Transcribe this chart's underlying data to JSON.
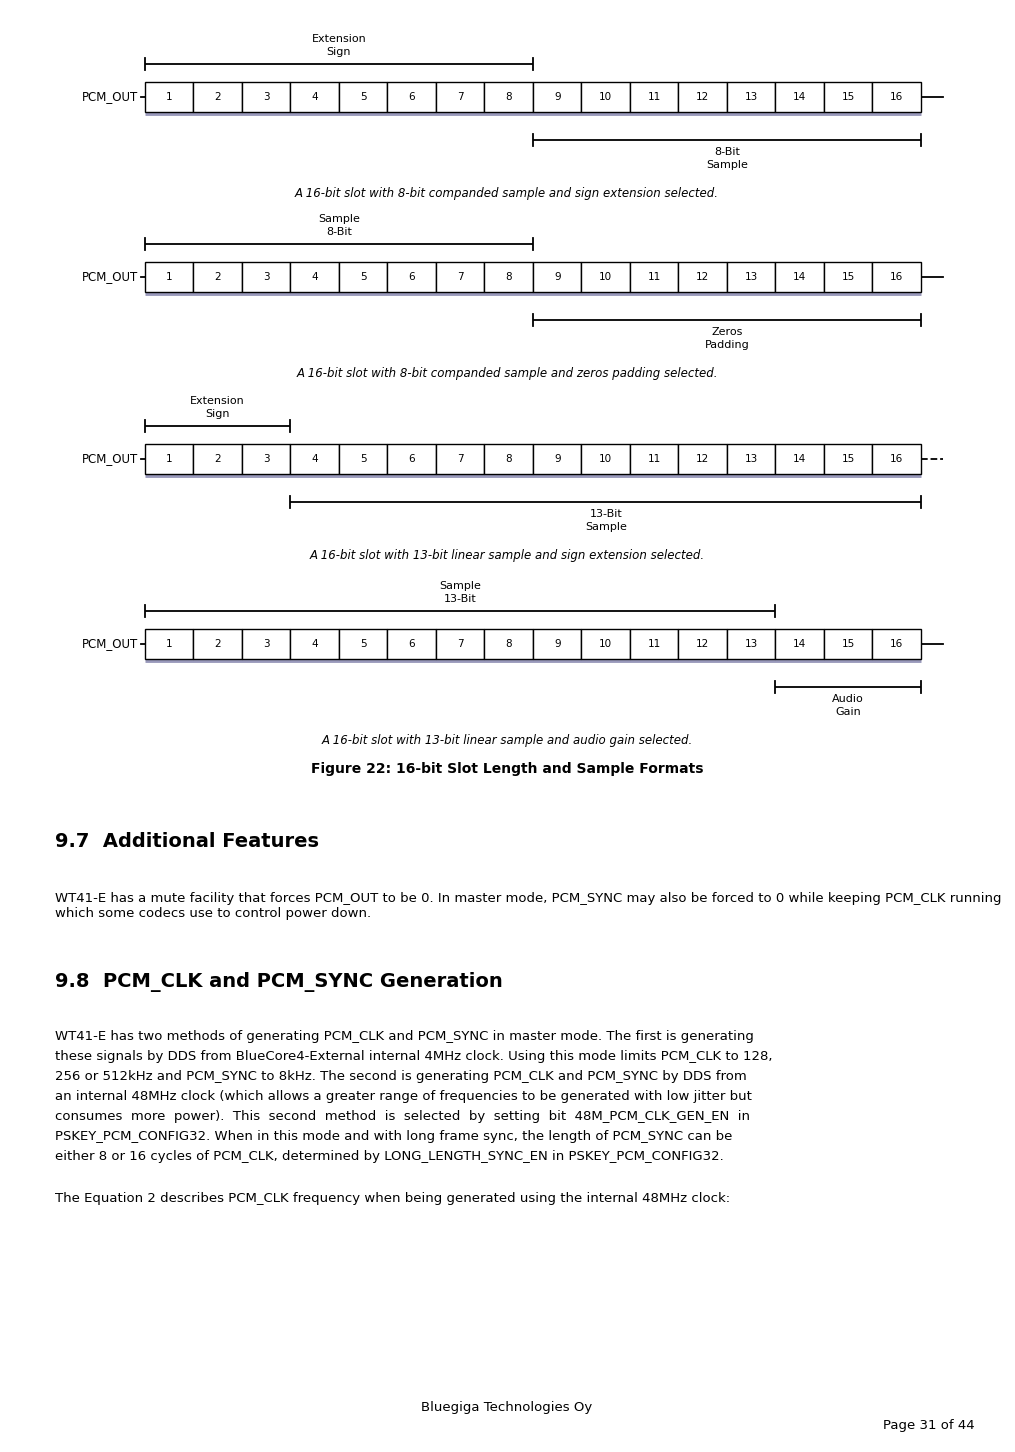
{
  "bg_color": "#ffffff",
  "diagrams": [
    {
      "label": "PCM_OUT",
      "cells": [
        "1",
        "2",
        "3",
        "4",
        "5",
        "6",
        "7",
        "8",
        "9",
        "10",
        "11",
        "12",
        "13",
        "14",
        "15",
        "16"
      ],
      "top_arrow": {
        "start": 1,
        "end": 8,
        "label_line1": "Sign",
        "label_line2": "Extension"
      },
      "bottom_arrow": {
        "start": 9,
        "end": 16,
        "label_line1": "8-Bit",
        "label_line2": "Sample"
      },
      "caption": "A 16-bit slot with 8-bit companded sample and sign extension selected.",
      "right_dashed": false
    },
    {
      "label": "PCM_OUT",
      "cells": [
        "1",
        "2",
        "3",
        "4",
        "5",
        "6",
        "7",
        "8",
        "9",
        "10",
        "11",
        "12",
        "13",
        "14",
        "15",
        "16"
      ],
      "top_arrow": {
        "start": 1,
        "end": 8,
        "label_line1": "8-Bit",
        "label_line2": "Sample"
      },
      "bottom_arrow": {
        "start": 9,
        "end": 16,
        "label_line1": "Zeros",
        "label_line2": "Padding"
      },
      "caption": "A 16-bit slot with 8-bit companded sample and zeros padding selected.",
      "right_dashed": false
    },
    {
      "label": "PCM_OUT",
      "cells": [
        "1",
        "2",
        "3",
        "4",
        "5",
        "6",
        "7",
        "8",
        "9",
        "10",
        "11",
        "12",
        "13",
        "14",
        "15",
        "16"
      ],
      "top_arrow": {
        "start": 1,
        "end": 3,
        "label_line1": "Sign",
        "label_line2": "Extension"
      },
      "bottom_arrow": {
        "start": 4,
        "end": 16,
        "label_line1": "13-Bit",
        "label_line2": "Sample"
      },
      "caption": "A 16-bit slot with 13-bit linear sample and sign extension selected.",
      "right_dashed": true
    },
    {
      "label": "PCM_OUT",
      "cells": [
        "1",
        "2",
        "3",
        "4",
        "5",
        "6",
        "7",
        "8",
        "9",
        "10",
        "11",
        "12",
        "13",
        "14",
        "15",
        "16"
      ],
      "top_arrow": {
        "start": 1,
        "end": 13,
        "label_line1": "13-Bit",
        "label_line2": "Sample"
      },
      "bottom_arrow": {
        "start": 14,
        "end": 16,
        "label_line1": "Audio",
        "label_line2": "Gain"
      },
      "caption": "A 16-bit slot with 13-bit linear sample and audio gain selected.",
      "right_dashed": false
    }
  ],
  "figure_caption": "Figure 22: 16-bit Slot Length and Sample Formats",
  "section_97_title": "9.7  Additional Features",
  "section_97_text": "WT41-E has a mute facility that forces PCM_OUT to be 0. In master mode, PCM_SYNC may also be forced to 0 while keeping PCM_CLK running which some codecs use to control power down.",
  "section_98_title": "9.8  PCM_CLK and PCM_SYNC Generation",
  "section_98_text_lines": [
    "WT41-E has two methods of generating PCM_CLK and PCM_SYNC in master mode. The first is generating",
    "these signals by DDS from BlueCore4-External internal 4MHz clock. Using this mode limits PCM_CLK to 128,",
    "256 or 512kHz and PCM_SYNC to 8kHz. The second is generating PCM_CLK and PCM_SYNC by DDS from",
    "an internal 48MHz clock (which allows a greater range of frequencies to be generated with low jitter but",
    "consumes  more  power).  This  second  method  is  selected  by  setting  bit  48M_PCM_CLK_GEN_EN  in",
    "PSKEY_PCM_CONFIG32. When in this mode and with long frame sync, the length of PCM_SYNC can be",
    "either 8 or 16 cycles of PCM_CLK, determined by LONG_LENGTH_SYNC_EN in PSKEY_PCM_CONFIG32."
  ],
  "section_98_text2": "The Equation 2 describes PCM_CLK frequency when being generated using the internal 48MHz clock:",
  "footer_center": "Bluegiga Technologies Oy",
  "footer_right": "Page 31 of 44",
  "cell_font_size": 7.5,
  "label_font_size": 8.5,
  "arrow_label_font_size": 8,
  "caption_font_size": 8.5,
  "section_title_font_size": 14,
  "body_font_size": 9.5
}
